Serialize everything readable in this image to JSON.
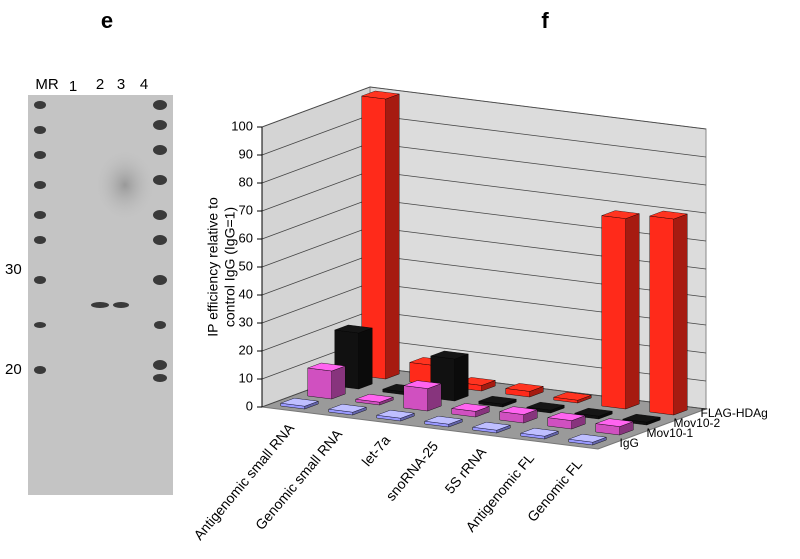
{
  "gel": {
    "panel_label": "e",
    "lane_labels": [
      "MR",
      "1",
      "2",
      "3",
      "4"
    ],
    "size_labels": [
      "30",
      "20"
    ]
  },
  "chart_data": {
    "type": "bar3d",
    "panel_label": "f",
    "ylabel": [
      "IP efficiency relative to",
      "control IgG (IgG=1)"
    ],
    "categories": [
      "Antigenomic small RNA",
      "Genomic small RNA",
      "let-7a",
      "snoRNA-25",
      "5S rRNA",
      "Antigenomic FL",
      "Genomic FL"
    ],
    "series": [
      {
        "name": "IgG",
        "color": "#9999ff",
        "values": [
          1,
          1,
          1,
          1,
          1,
          1,
          1
        ]
      },
      {
        "name": "Mov10-1",
        "color": "#d050c0",
        "values": [
          10,
          1,
          8,
          2,
          3,
          3,
          3
        ]
      },
      {
        "name": "Mov10-2",
        "color": "#111111",
        "values": [
          20,
          1,
          15,
          1,
          1,
          1,
          1
        ]
      },
      {
        "name": "FLAG-HDAg",
        "color": "#ff2a1a",
        "values": [
          100,
          7,
          2,
          2,
          1,
          68,
          70
        ]
      }
    ],
    "ylim": [
      0,
      100
    ],
    "yticks": [
      0,
      10,
      20,
      30,
      40,
      50,
      60,
      70,
      80,
      90,
      100
    ],
    "grid": true
  }
}
